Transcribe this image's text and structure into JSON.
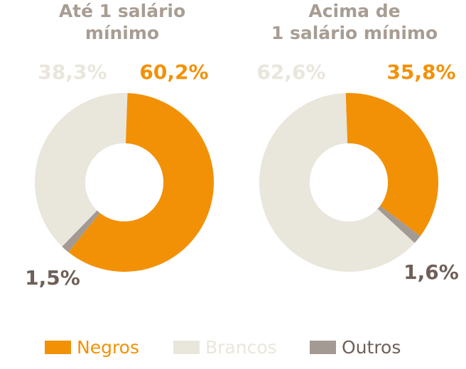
{
  "colors": {
    "negros": "#f29106",
    "brancos": "#e9e6dc",
    "outros": "#a39a93",
    "title": "#a89d93",
    "outros_label": "#6e6058"
  },
  "chart_data": [
    {
      "type": "pie",
      "title_lines": [
        "Até 1 salário",
        "mínimo"
      ],
      "slices": [
        {
          "name": "Negros",
          "value": 60.2,
          "label": "60,2%"
        },
        {
          "name": "Outros",
          "value": 1.5,
          "label": "1,5%"
        },
        {
          "name": "Brancos",
          "value": 38.3,
          "label": "38,3%"
        }
      ]
    },
    {
      "type": "pie",
      "title_lines": [
        "Acima de",
        "1 salário mínimo"
      ],
      "slices": [
        {
          "name": "Negros",
          "value": 35.8,
          "label": "35,8%"
        },
        {
          "name": "Outros",
          "value": 1.6,
          "label": "1,6%"
        },
        {
          "name": "Brancos",
          "value": 62.6,
          "label": "62,6%"
        }
      ]
    }
  ],
  "legend": [
    {
      "key": "negros",
      "label": "Negros"
    },
    {
      "key": "brancos",
      "label": "Brancos"
    },
    {
      "key": "outros",
      "label": "Outros"
    }
  ]
}
